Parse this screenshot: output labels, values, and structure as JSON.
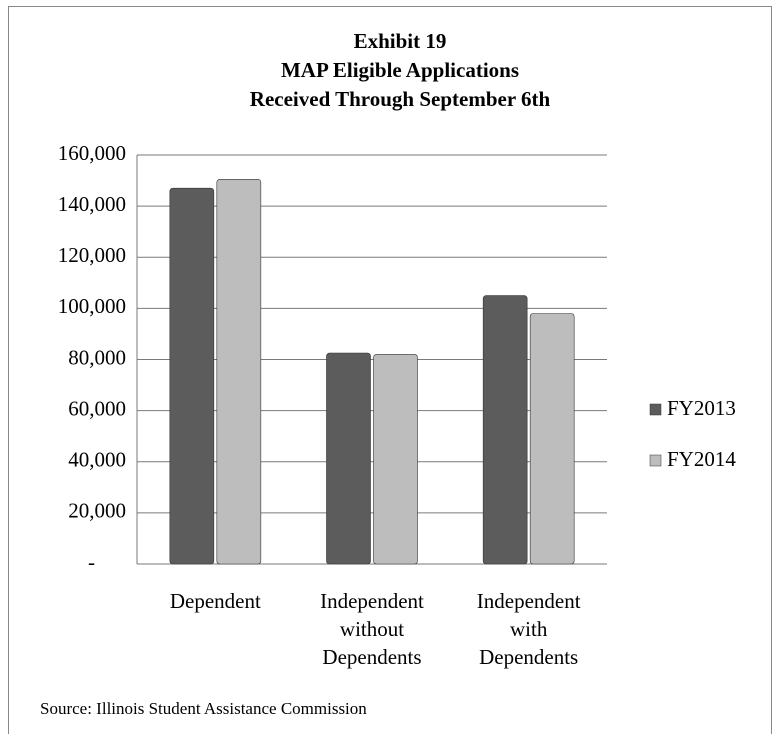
{
  "chart_data": {
    "type": "bar",
    "title": [
      "Exhibit 19",
      "MAP Eligible Applications",
      "Received Through September  6th"
    ],
    "categories": [
      "Dependent",
      "Independent\nwithout\nDependents",
      "Independent\nwith\nDependents"
    ],
    "series": [
      {
        "name": "FY2013",
        "color": "#5c5c5c",
        "values": [
          147000,
          82500,
          105000
        ]
      },
      {
        "name": "FY2014",
        "color": "#bdbdbd",
        "values": [
          150500,
          82000,
          98000
        ]
      }
    ],
    "ylim": [
      0,
      160000
    ],
    "yticks": [
      {
        "value": 0,
        "label": "-"
      },
      {
        "value": 20000,
        "label": "20,000"
      },
      {
        "value": 40000,
        "label": "40,000"
      },
      {
        "value": 60000,
        "label": "60,000"
      },
      {
        "value": 80000,
        "label": "80,000"
      },
      {
        "value": 100000,
        "label": "100,000"
      },
      {
        "value": 120000,
        "label": "120,000"
      },
      {
        "value": 140000,
        "label": "140,000"
      },
      {
        "value": 160000,
        "label": "160,000"
      }
    ],
    "grid": true,
    "legend": "right",
    "source": "Source:  Illinois Student Assistance Commission"
  }
}
